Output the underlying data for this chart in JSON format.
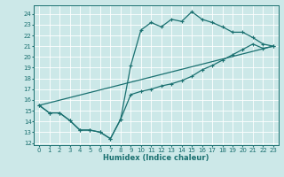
{
  "xlabel": "Humidex (Indice chaleur)",
  "bg_color": "#cce8e8",
  "grid_color": "#ffffff",
  "line_color": "#1a7070",
  "xlim": [
    -0.5,
    23.5
  ],
  "ylim": [
    11.8,
    24.8
  ],
  "xticks": [
    0,
    1,
    2,
    3,
    4,
    5,
    6,
    7,
    8,
    9,
    10,
    11,
    12,
    13,
    14,
    15,
    16,
    17,
    18,
    19,
    20,
    21,
    22,
    23
  ],
  "yticks": [
    12,
    13,
    14,
    15,
    16,
    17,
    18,
    19,
    20,
    21,
    22,
    23,
    24
  ],
  "curve1_x": [
    0,
    1,
    2,
    3,
    4,
    5,
    6,
    7,
    8,
    9,
    10,
    11,
    12,
    13,
    14,
    15,
    16,
    17,
    18,
    19,
    20,
    21,
    22,
    23
  ],
  "curve1_y": [
    15.5,
    14.8,
    14.8,
    14.1,
    13.2,
    13.2,
    13.0,
    12.4,
    14.2,
    19.2,
    22.5,
    23.2,
    22.8,
    23.5,
    23.3,
    24.2,
    23.5,
    23.2,
    22.8,
    22.3,
    22.3,
    21.8,
    21.2,
    21.0
  ],
  "curve2_x": [
    0,
    1,
    2,
    3,
    4,
    5,
    6,
    7,
    8,
    9,
    10,
    11,
    12,
    13,
    14,
    15,
    16,
    17,
    18,
    19,
    20,
    21,
    22,
    23
  ],
  "curve2_y": [
    15.5,
    14.8,
    14.8,
    14.1,
    13.2,
    13.2,
    13.0,
    12.4,
    14.2,
    16.5,
    16.8,
    17.0,
    17.3,
    17.5,
    17.8,
    18.2,
    18.8,
    19.2,
    19.7,
    20.2,
    20.7,
    21.2,
    20.8,
    21.0
  ],
  "line_x": [
    0,
    23
  ],
  "line_y": [
    15.5,
    21.0
  ],
  "tick_fontsize": 5.0,
  "xlabel_fontsize": 6.0
}
